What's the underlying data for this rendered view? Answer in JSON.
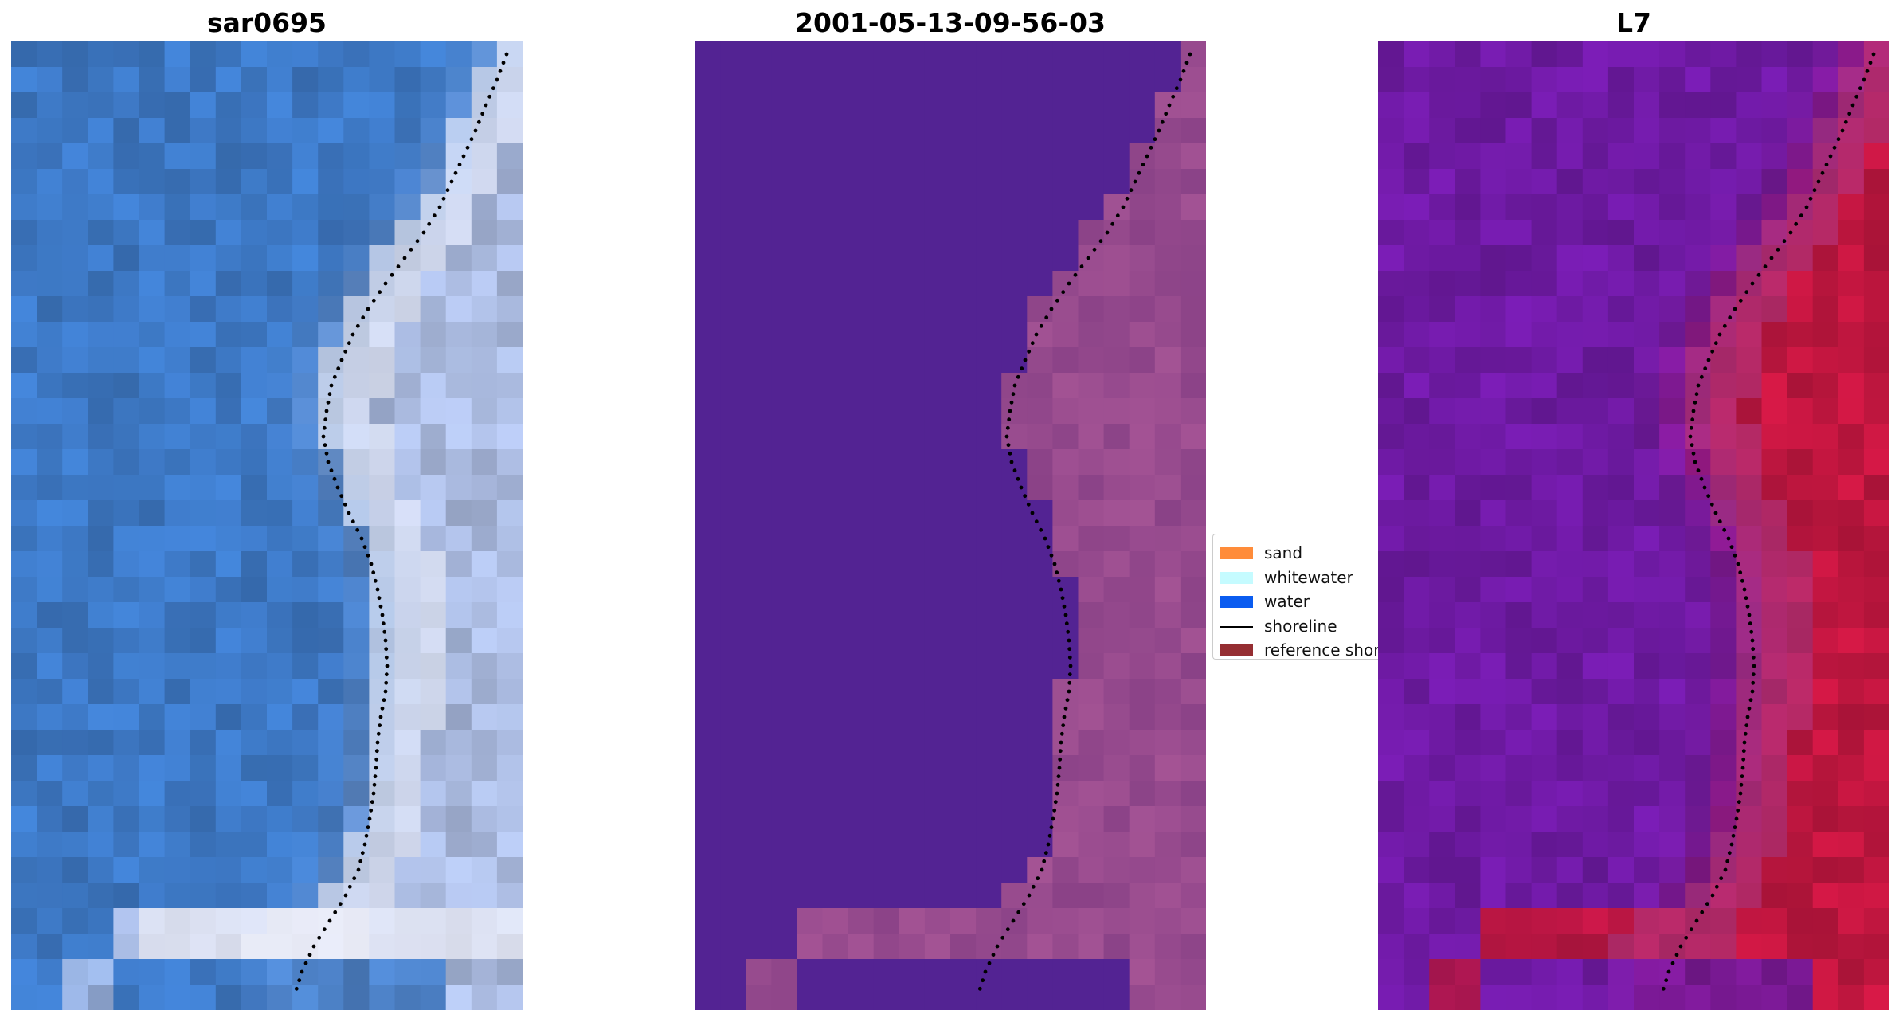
{
  "panels": [
    {
      "title": "sar0695",
      "style": "rgb",
      "color_water": "#3d78c4",
      "color_land": "#a9b9de",
      "color_surf": "#f2f2fa"
    },
    {
      "title": "2001-05-13-09-56-03",
      "style": "class",
      "color_water": "#532393",
      "color_land": "#8a4287",
      "color_surf": "#b65f9e"
    },
    {
      "title": "L7",
      "style": "index",
      "color_water": "#6e1aa3",
      "color_land": "#c0163f",
      "color_surf": "#a84092"
    }
  ],
  "legend": {
    "items": [
      {
        "label": "sand",
        "kind": "patch",
        "color": "#ff8c3a"
      },
      {
        "label": "whitewater",
        "kind": "patch",
        "color": "#c5fbff"
      },
      {
        "label": "water",
        "kind": "patch",
        "color": "#0a5cf0"
      },
      {
        "label": "shoreline",
        "kind": "line",
        "color": "#000000"
      },
      {
        "label": "reference shoreline",
        "kind": "patch",
        "color": "#952e32"
      }
    ]
  }
}
